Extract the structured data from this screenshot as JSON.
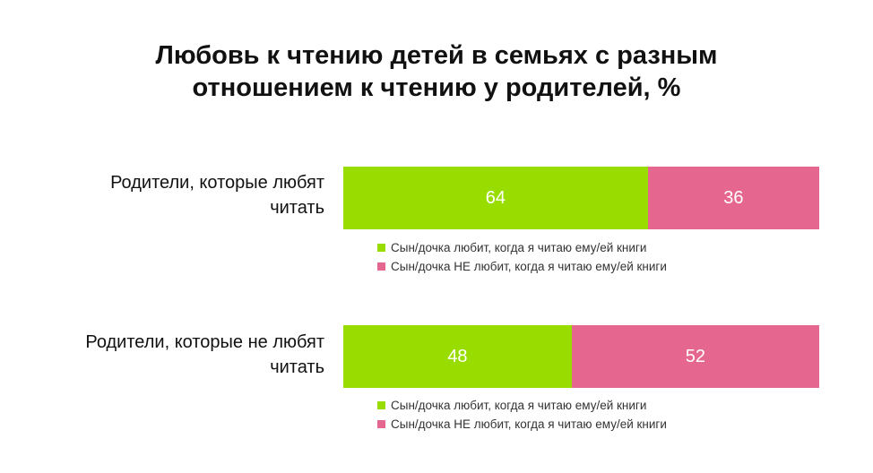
{
  "title_line1": "Любовь к чтению детей в семьях с разным",
  "title_line2": "отношением к чтению у родителей, %",
  "colors": {
    "loves": "#99dd00",
    "not_loves": "#e5678f"
  },
  "legend": {
    "loves": "Сын/дочка любит, когда я читаю ему/ей книги",
    "not_loves": "Сын/дочка НЕ любит, когда я читаю ему/ей книги"
  },
  "chart_data": {
    "type": "bar",
    "stacked": true,
    "orientation": "horizontal",
    "title": "Любовь к чтению детей в семьях с разным отношением к чтению у родителей, %",
    "categories": [
      "Родители, которые любят читать",
      "Родители, которые не любят читать"
    ],
    "series": [
      {
        "name": "Сын/дочка любит, когда я читаю ему/ей книги",
        "color": "#99dd00",
        "values": [
          64,
          48
        ]
      },
      {
        "name": "Сын/дочка НЕ любит, когда я читаю ему/ей книги",
        "color": "#e5678f",
        "values": [
          36,
          52
        ]
      }
    ],
    "xlim": [
      0,
      100
    ],
    "grid": false,
    "legend_placement": "below each bar"
  },
  "rows": [
    {
      "label_line1": "Родители, которые любят",
      "label_line2": "читать",
      "loves_value": "64",
      "not_loves_value": "36"
    },
    {
      "label_line1": "Родители, которые не любят",
      "label_line2": "читать",
      "loves_value": "48",
      "not_loves_value": "52"
    }
  ]
}
